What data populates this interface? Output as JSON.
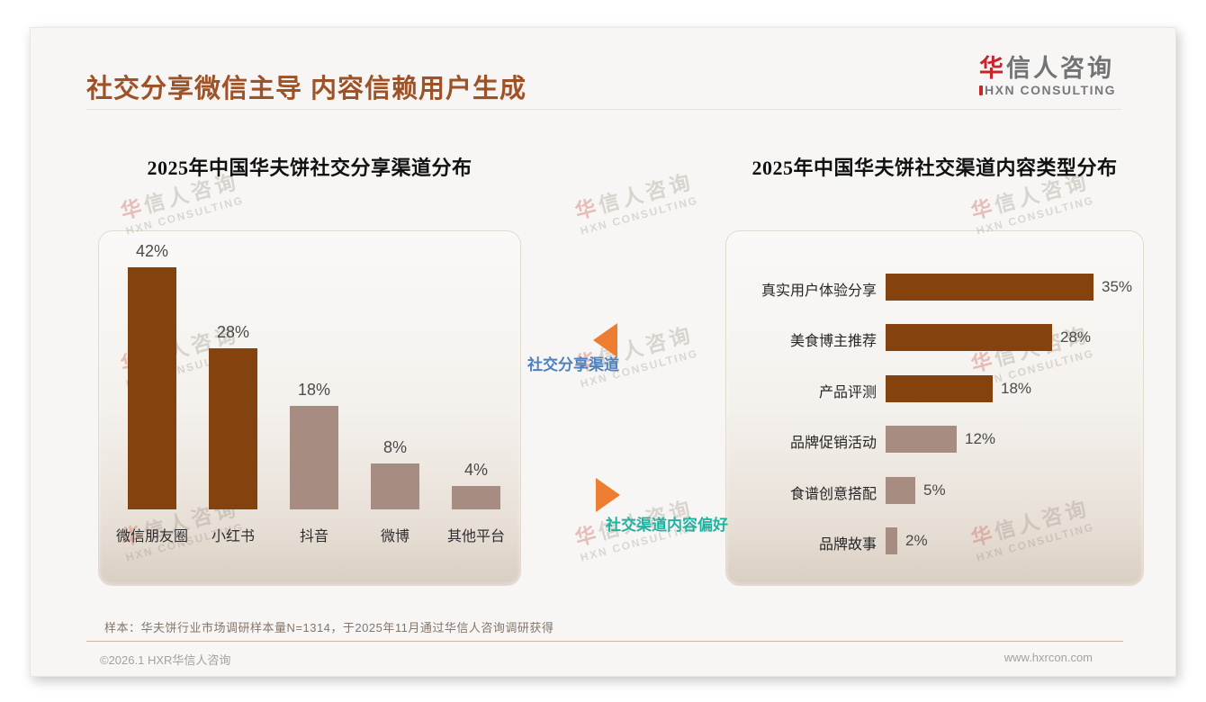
{
  "page": {
    "title": "社交分享微信主导 内容信赖用户生成"
  },
  "logo": {
    "cn_red": "华",
    "cn_rest": "信人咨询",
    "en": "HXN CONSULTING"
  },
  "watermark": {
    "cn_red": "华",
    "cn_rest": "信人咨询",
    "en": "HXN CONSULTING"
  },
  "annotations": {
    "left_label": "社交分享渠道",
    "right_label": "社交渠道内容偏好",
    "arrow_color": "#ED7D31",
    "left_label_color": "#4F81BD",
    "right_label_color": "#21B3A0"
  },
  "note": "样本：华夫饼行业市场调研样本量N=1314，于2025年11月通过华信人咨询调研获得",
  "footer": {
    "left": "©2026.1 HXR华信人咨询",
    "right": "www.hxrcon.com"
  },
  "colors": {
    "title_brown": "#9E5228",
    "bar_dark": "#84420E",
    "bar_light": "#A78C82"
  },
  "chart_data": [
    {
      "type": "bar",
      "orientation": "vertical",
      "title": "2025年中国华夫饼社交分享渠道分布",
      "categories": [
        "微信朋友圈",
        "小红书",
        "抖音",
        "微博",
        "其他平台"
      ],
      "values": [
        42,
        28,
        18,
        8,
        4
      ],
      "unit": "%",
      "value_labels": [
        "42%",
        "28%",
        "18%",
        "8%",
        "4%"
      ],
      "bar_colors": [
        "#84420E",
        "#84420E",
        "#A78C82",
        "#A78C82",
        "#A78C82"
      ],
      "xlabel": "",
      "ylabel": "",
      "ylim": [
        0,
        48
      ],
      "grid": false,
      "legend": "none",
      "data_labels": "above bars"
    },
    {
      "type": "bar",
      "orientation": "horizontal",
      "title": "2025年中国华夫饼社交渠道内容类型分布",
      "categories": [
        "真实用户体验分享",
        "美食博主推荐",
        "产品评测",
        "品牌促销活动",
        "食谱创意搭配",
        "品牌故事"
      ],
      "values": [
        35,
        28,
        18,
        12,
        5,
        2
      ],
      "unit": "%",
      "value_labels": [
        "35%",
        "28%",
        "18%",
        "12%",
        "5%",
        "2%"
      ],
      "bar_colors": [
        "#84420E",
        "#84420E",
        "#84420E",
        "#A78C82",
        "#A78C82",
        "#A78C82"
      ],
      "xlabel": "",
      "ylabel": "",
      "xlim": [
        0,
        40
      ],
      "grid": false,
      "legend": "none",
      "data_labels": "right of bars"
    }
  ]
}
